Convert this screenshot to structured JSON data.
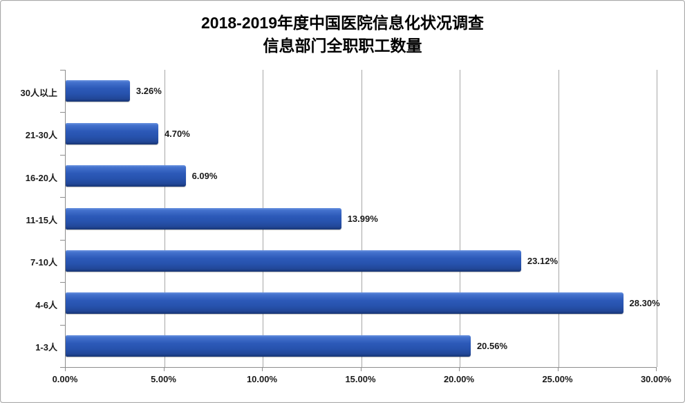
{
  "chart_data": {
    "type": "bar",
    "orientation": "horizontal",
    "title_line1": "2018-2019年度中国医院信息化状况调查",
    "title_line2": "信息部门全职职工数量",
    "categories": [
      "30人以上",
      "21-30人",
      "16-20人",
      "11-15人",
      "7-10人",
      "4-6人",
      "1-3人"
    ],
    "values": [
      3.26,
      4.7,
      6.09,
      13.99,
      23.12,
      28.3,
      20.56
    ],
    "value_labels": [
      "3.26%",
      "4.70%",
      "6.09%",
      "13.99%",
      "23.12%",
      "28.30%",
      "20.56%"
    ],
    "x_tick_labels": [
      "0.00%",
      "5.00%",
      "10.00%",
      "15.00%",
      "20.00%",
      "25.00%",
      "30.00%"
    ],
    "x_tick_values": [
      0,
      5,
      10,
      15,
      20,
      25,
      30
    ],
    "xlim": [
      0,
      30
    ],
    "grid": "vertical",
    "legend": "none",
    "colors": {
      "bar_fill": "#2c59b8",
      "bar_edge_dark": "#16306b",
      "gridline": "#a6a6a6",
      "axis_line": "#8c8c8c",
      "text": "#1a1a1a",
      "title_text": "#000000",
      "background": "#ffffff",
      "frame_border": "#a9a9a9"
    }
  }
}
